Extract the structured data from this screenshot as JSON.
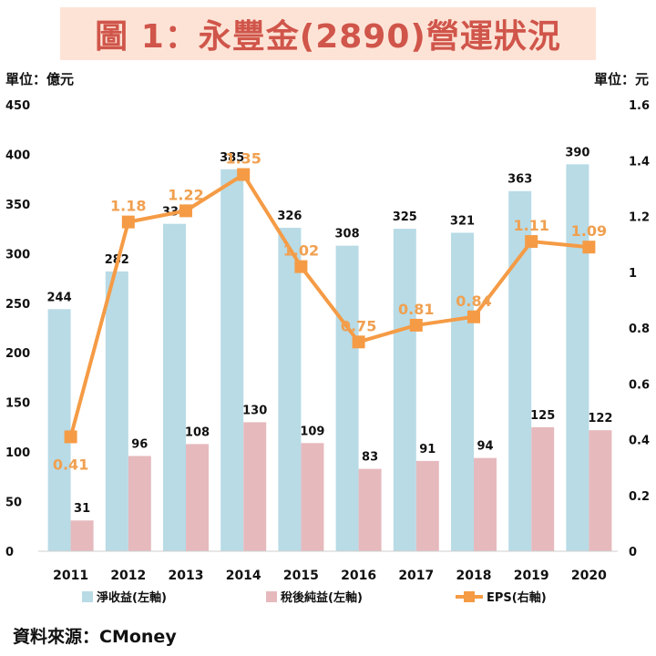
{
  "title": "圖 1：永豐金(2890)營運狀況",
  "left_unit": "單位：億元",
  "right_unit": "單位：元",
  "source": "資料來源：CMoney",
  "colors": {
    "revenue": "#b8dbe6",
    "net_income": "#e6b9bd",
    "eps": "#f59b45",
    "eps_label": "#f0a050",
    "title": "#d0554a",
    "title_bg": "#fde3d6"
  },
  "chart_data": {
    "type": "bar",
    "categories": [
      "2011",
      "2012",
      "2013",
      "2014",
      "2015",
      "2016",
      "2017",
      "2018",
      "2019",
      "2020"
    ],
    "series": [
      {
        "name": "淨收益(左軸)",
        "type": "bar",
        "axis": "left",
        "values": [
          244,
          282,
          330,
          385,
          326,
          308,
          325,
          321,
          363,
          390
        ]
      },
      {
        "name": "稅後純益(左軸)",
        "type": "bar",
        "axis": "left",
        "values": [
          31,
          96,
          108,
          130,
          109,
          83,
          91,
          94,
          125,
          122
        ]
      },
      {
        "name": "EPS(右軸)",
        "type": "line",
        "axis": "right",
        "values": [
          0.41,
          1.18,
          1.22,
          1.35,
          1.02,
          0.75,
          0.81,
          0.84,
          1.11,
          1.09
        ]
      }
    ],
    "ylim_left": [
      0,
      450
    ],
    "yticks_left": [
      "0",
      "50",
      "100",
      "150",
      "200",
      "250",
      "300",
      "350",
      "400",
      "450"
    ],
    "ylim_right": [
      0,
      1.6
    ],
    "yticks_right": [
      "0",
      "0.2",
      "0.4",
      "0.6",
      "0.8",
      "1",
      "1.2",
      "1.4",
      "1.6"
    ],
    "legend": "bottom",
    "grid": false
  }
}
